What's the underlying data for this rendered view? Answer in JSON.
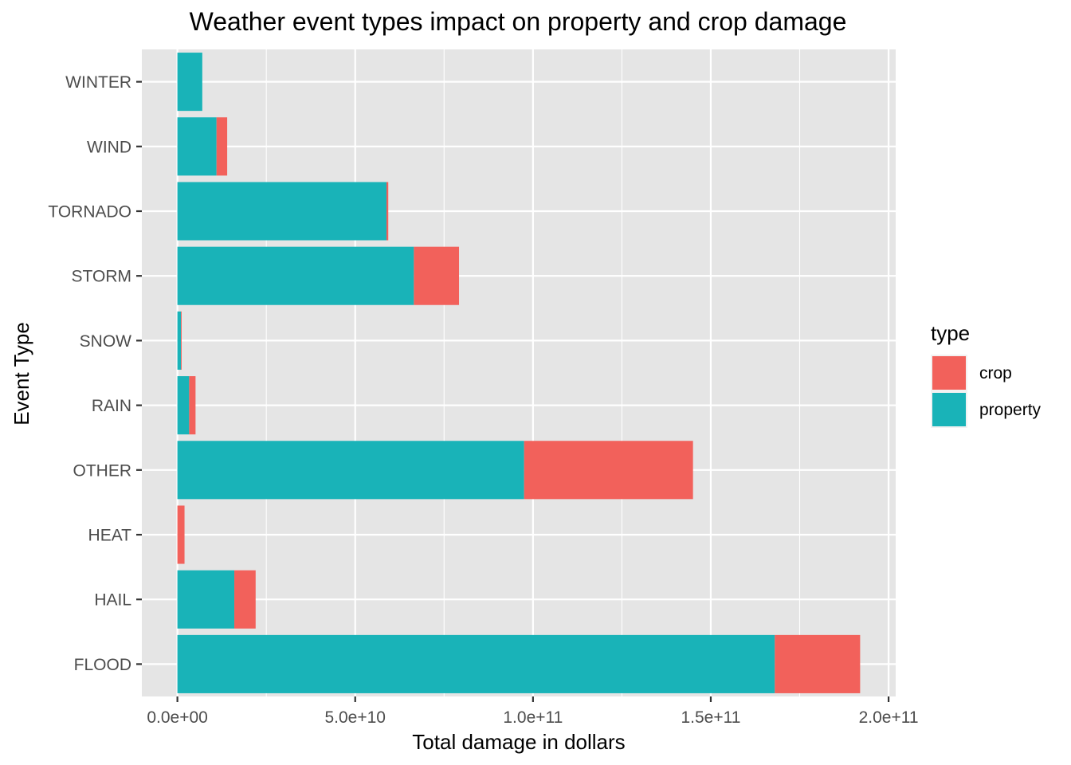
{
  "chart_data": {
    "type": "bar",
    "orientation": "horizontal",
    "stacked": true,
    "title": "Weather event types impact on property and crop damage",
    "xlabel": "Total damage in dollars",
    "ylabel": "Event Type",
    "xlim": [
      -10000000000,
      202000000000
    ],
    "x_ticks": [
      0,
      50000000000,
      100000000000,
      150000000000,
      200000000000
    ],
    "x_tick_labels": [
      "0.0e+00",
      "5.0e+10",
      "1.0e+11",
      "1.5e+11",
      "2.0e+11"
    ],
    "categories": [
      "FLOOD",
      "HAIL",
      "HEAT",
      "OTHER",
      "RAIN",
      "SNOW",
      "STORM",
      "TORNADO",
      "WIND",
      "WINTER"
    ],
    "series": [
      {
        "name": "property",
        "color": "#19B3B8",
        "values": [
          168000000000,
          16000000000,
          0,
          97500000000,
          3300000000,
          1000000000,
          66500000000,
          58800000000,
          11000000000,
          7000000000
        ]
      },
      {
        "name": "crop",
        "color": "#F2615B",
        "values": [
          24000000000,
          6000000000,
          2000000000,
          47500000000,
          1800000000,
          200000000,
          12700000000,
          500000000,
          3000000000,
          0
        ]
      }
    ],
    "legend": {
      "title": "type",
      "position": "right",
      "items": [
        {
          "label": "crop",
          "color": "#F2615B"
        },
        {
          "label": "property",
          "color": "#19B3B8"
        }
      ]
    },
    "grid": true,
    "panel_background": "#E5E5E5",
    "grid_color": "#FFFFFF"
  }
}
